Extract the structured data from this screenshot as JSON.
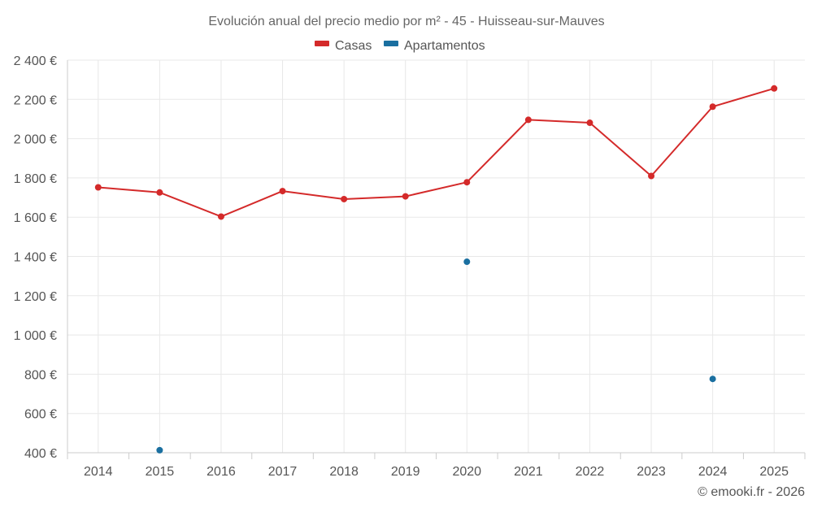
{
  "chart_data": {
    "type": "line",
    "title": "Evolución anual del precio medio por m² - 45 - Huisseau-sur-Mauves",
    "categories": [
      "2014",
      "2015",
      "2016",
      "2017",
      "2018",
      "2019",
      "2020",
      "2021",
      "2022",
      "2023",
      "2024",
      "2025"
    ],
    "series": [
      {
        "name": "Casas",
        "color": "#d42a2a",
        "values": [
          1752,
          1726,
          1603,
          1733,
          1692,
          1706,
          1778,
          2096,
          2081,
          1810,
          2163,
          2256
        ]
      },
      {
        "name": "Apartamentos",
        "color": "#1a6fa0",
        "values": [
          null,
          413,
          null,
          null,
          null,
          null,
          1373,
          null,
          null,
          null,
          776,
          null
        ]
      }
    ],
    "ylim": [
      400,
      2400
    ],
    "yticks": [
      400,
      600,
      800,
      1000,
      1200,
      1400,
      1600,
      1800,
      2000,
      2200,
      2400
    ],
    "ytick_labels": [
      "400 €",
      "600 €",
      "800 €",
      "1 000 €",
      "1 200 €",
      "1 400 €",
      "1 600 €",
      "1 800 €",
      "2 000 €",
      "2 200 €",
      "2 400 €"
    ],
    "legend_position": "top-center",
    "grid": true,
    "credit": "© emooki.fr - 2026"
  }
}
